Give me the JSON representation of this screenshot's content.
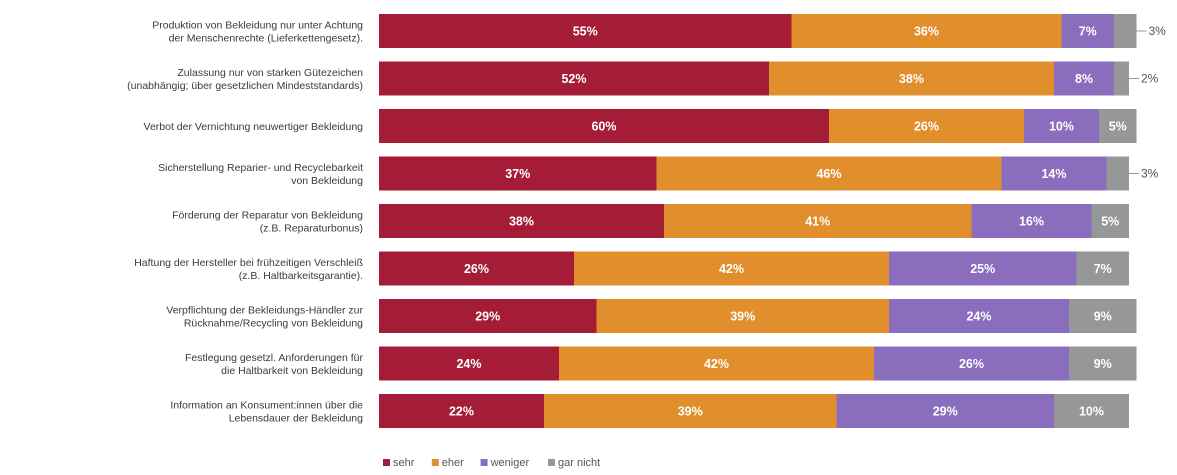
{
  "chart_data": {
    "type": "bar",
    "orientation": "horizontal",
    "stacked": true,
    "categories": [
      [
        "Produktion von Bekleidung nur unter Achtung",
        "der Menschenrechte (Lieferkettengesetz)."
      ],
      [
        "Zulassung nur von starken Gütezeichen",
        "(unabhängig; über gesetzlichen Mindeststandards)"
      ],
      [
        "Verbot der Vernichtung neuwertiger Bekleidung"
      ],
      [
        "Sicherstellung Reparier- und Recyclebarkeit",
        "von Bekleidung"
      ],
      [
        "Förderung der Reparatur von Bekleidung",
        "(z.B. Reparaturbonus)"
      ],
      [
        "Haftung der Hersteller bei frühzeitigen Verschleiß",
        "(z.B. Haltbarkeitsgarantie)."
      ],
      [
        "Verpflichtung der Bekleidungs-Händler zur",
        "Rücknahme/Recycling von Bekleidung"
      ],
      [
        "Festlegung gesetzl. Anforderungen für",
        "die Haltbarkeit von Bekleidung"
      ],
      [
        "Information an Konsument:innen über die",
        "Lebensdauer der Bekleidung"
      ]
    ],
    "series": [
      {
        "name": "sehr",
        "color": "#a51c37",
        "values": [
          55,
          52,
          60,
          37,
          38,
          26,
          29,
          24,
          22
        ]
      },
      {
        "name": "eher",
        "color": "#e08f2c",
        "values": [
          36,
          38,
          26,
          46,
          41,
          42,
          39,
          42,
          39
        ]
      },
      {
        "name": "weniger",
        "color": "#8b6dbd",
        "values": [
          7,
          8,
          10,
          14,
          16,
          25,
          24,
          26,
          29
        ]
      },
      {
        "name": "gar nicht",
        "color": "#969799",
        "values": [
          3,
          2,
          5,
          3,
          5,
          7,
          9,
          9,
          10
        ]
      }
    ],
    "value_suffix": "%",
    "outside_labels": [
      true,
      true,
      false,
      true,
      false,
      false,
      false,
      false,
      false
    ],
    "legend_position": "bottom-center",
    "grid": false,
    "xlim": [
      0,
      100
    ]
  }
}
